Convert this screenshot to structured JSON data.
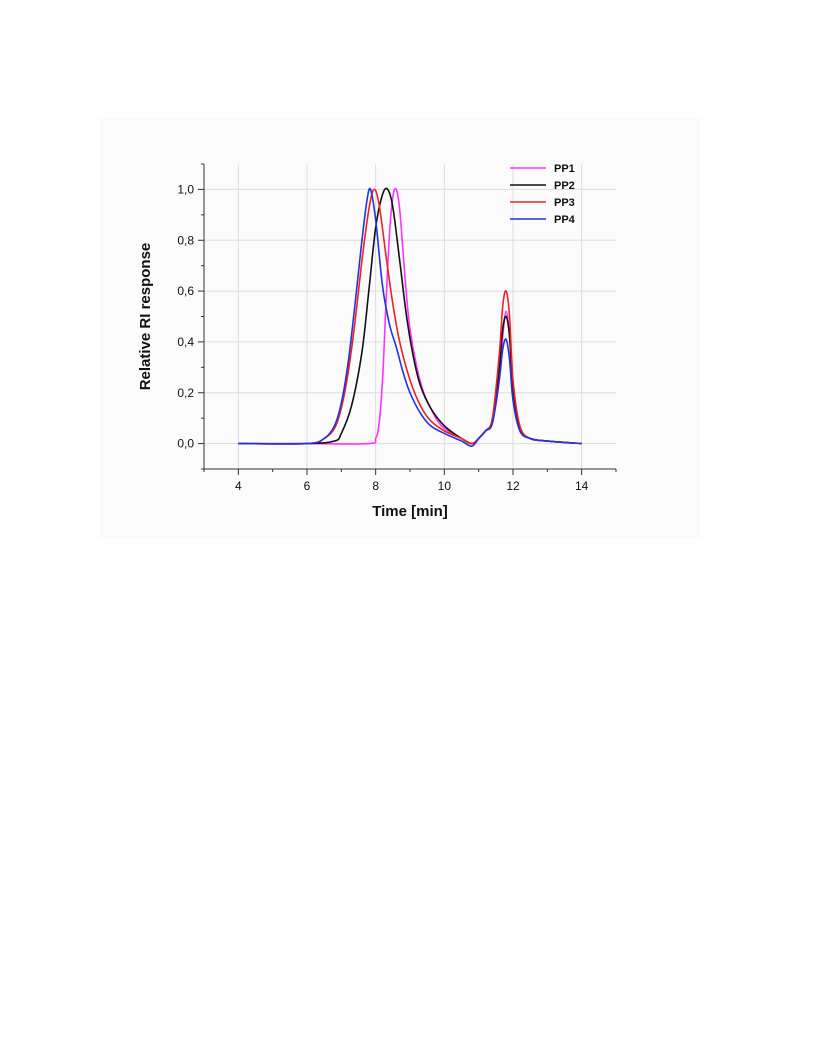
{
  "chart_data": {
    "type": "line",
    "title": "",
    "xlabel": "Time [min]",
    "ylabel": "Relative RI response",
    "xlim": [
      3,
      15
    ],
    "ylim": [
      -0.1,
      1.1
    ],
    "xticks": [
      4,
      6,
      8,
      10,
      12,
      14
    ],
    "yticks": [
      0.0,
      0.2,
      0.4,
      0.6,
      0.8,
      1.0
    ],
    "xtick_labels": [
      "4",
      "6",
      "8",
      "10",
      "12",
      "14"
    ],
    "ytick_labels": [
      "0,0",
      "0,2",
      "0,4",
      "0,6",
      "0,8",
      "1,0"
    ],
    "grid": true,
    "legend_position": "top-right",
    "series": [
      {
        "name": "PP1",
        "color": "#ff33ff",
        "x": [
          4,
          6,
          7.8,
          8.0,
          8.1,
          8.2,
          8.3,
          8.4,
          8.5,
          8.6,
          8.7,
          8.8,
          8.9,
          9.0,
          9.2,
          9.4,
          9.6,
          9.8,
          10.0,
          10.5,
          10.8,
          11.0,
          11.2,
          11.4,
          11.6,
          11.7,
          11.8,
          11.9,
          12.0,
          12.2,
          12.5,
          13.0,
          14.0
        ],
        "y": [
          0,
          0,
          0.0,
          0.02,
          0.08,
          0.25,
          0.55,
          0.82,
          0.97,
          1.0,
          0.92,
          0.75,
          0.58,
          0.45,
          0.3,
          0.2,
          0.14,
          0.09,
          0.06,
          0.02,
          0.0,
          0.02,
          0.05,
          0.09,
          0.25,
          0.42,
          0.52,
          0.42,
          0.22,
          0.06,
          0.02,
          0.01,
          0.0
        ]
      },
      {
        "name": "PP2",
        "color": "#111111",
        "x": [
          4,
          6,
          6.8,
          7.0,
          7.3,
          7.6,
          7.8,
          8.0,
          8.2,
          8.35,
          8.5,
          8.7,
          8.9,
          9.1,
          9.3,
          9.6,
          10.0,
          10.5,
          10.8,
          11.0,
          11.2,
          11.4,
          11.6,
          11.7,
          11.8,
          11.9,
          12.0,
          12.2,
          12.5,
          13.0,
          14.0
        ],
        "y": [
          0,
          0,
          0.01,
          0.04,
          0.15,
          0.36,
          0.6,
          0.85,
          0.98,
          1.0,
          0.93,
          0.72,
          0.5,
          0.34,
          0.23,
          0.14,
          0.07,
          0.02,
          0.0,
          0.02,
          0.05,
          0.09,
          0.3,
          0.45,
          0.5,
          0.42,
          0.22,
          0.06,
          0.02,
          0.01,
          0.0
        ]
      },
      {
        "name": "PP3",
        "color": "#ee2222",
        "x": [
          4,
          6,
          6.5,
          6.8,
          7.0,
          7.2,
          7.4,
          7.6,
          7.8,
          7.95,
          8.1,
          8.3,
          8.5,
          8.7,
          9.0,
          9.3,
          9.6,
          10.0,
          10.5,
          10.8,
          11.0,
          11.2,
          11.4,
          11.6,
          11.7,
          11.8,
          11.9,
          12.0,
          12.2,
          12.5,
          13.0,
          14.0
        ],
        "y": [
          0,
          0,
          0.02,
          0.06,
          0.14,
          0.28,
          0.48,
          0.72,
          0.92,
          1.0,
          0.94,
          0.74,
          0.55,
          0.4,
          0.25,
          0.15,
          0.09,
          0.05,
          0.02,
          0.0,
          0.02,
          0.05,
          0.1,
          0.35,
          0.54,
          0.6,
          0.5,
          0.25,
          0.07,
          0.02,
          0.01,
          0.0
        ]
      },
      {
        "name": "PP4",
        "color": "#2233dd",
        "x": [
          4,
          6,
          6.5,
          6.8,
          7.0,
          7.2,
          7.4,
          7.6,
          7.75,
          7.85,
          8.0,
          8.2,
          8.4,
          8.6,
          8.8,
          9.0,
          9.3,
          9.6,
          10.0,
          10.5,
          10.8,
          11.0,
          11.2,
          11.4,
          11.6,
          11.7,
          11.8,
          11.9,
          12.0,
          12.2,
          12.5,
          13.0,
          14.0
        ],
        "y": [
          0,
          0,
          0.02,
          0.07,
          0.16,
          0.32,
          0.55,
          0.8,
          0.96,
          1.0,
          0.88,
          0.62,
          0.47,
          0.38,
          0.28,
          0.2,
          0.12,
          0.07,
          0.04,
          0.01,
          -0.01,
          0.02,
          0.05,
          0.08,
          0.25,
          0.37,
          0.41,
          0.33,
          0.17,
          0.05,
          0.02,
          0.01,
          0.0
        ]
      }
    ]
  }
}
